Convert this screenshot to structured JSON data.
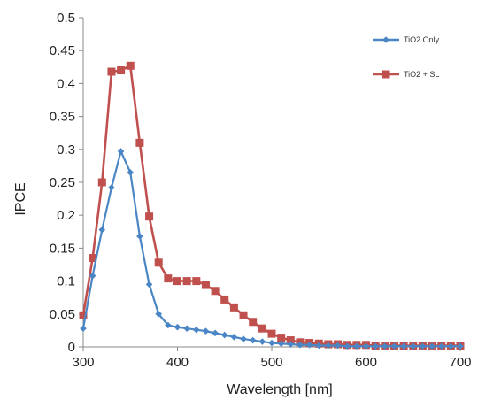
{
  "chart_data": {
    "type": "line",
    "xlabel": "Wavelength [nm]",
    "ylabel": "IPCE",
    "xlim": [
      300,
      700
    ],
    "ylim": [
      0,
      0.5
    ],
    "x_ticks": [
      300,
      400,
      500,
      600,
      700
    ],
    "y_ticks": [
      "0",
      "0.05",
      "0.1",
      "0.15",
      "0.2",
      "0.25",
      "0.3",
      "0.35",
      "0.4",
      "0.45",
      "0.5"
    ],
    "grid": false,
    "legend_position": "top-right",
    "series": [
      {
        "name": "TiO2 Only",
        "color": "#4a86c5",
        "marker": "diamond",
        "x": [
          300,
          310,
          320,
          330,
          340,
          350,
          360,
          370,
          380,
          390,
          400,
          410,
          420,
          430,
          440,
          450,
          460,
          470,
          480,
          490,
          500,
          510,
          520,
          530,
          540,
          550,
          560,
          570,
          580,
          590,
          600,
          610,
          620,
          630,
          640,
          650,
          660,
          670,
          680,
          690,
          700
        ],
        "values": [
          0.028,
          0.108,
          0.178,
          0.242,
          0.297,
          0.265,
          0.168,
          0.095,
          0.05,
          0.033,
          0.03,
          0.028,
          0.026,
          0.024,
          0.021,
          0.018,
          0.015,
          0.012,
          0.01,
          0.008,
          0.006,
          0.005,
          0.004,
          0.003,
          0.003,
          0.002,
          0.002,
          0.002,
          0.001,
          0.001,
          0.001,
          0.001,
          0.001,
          0.001,
          0.001,
          0.001,
          0.001,
          0.001,
          0.001,
          0.001,
          0.001
        ]
      },
      {
        "name": "TiO2 + SL",
        "color": "#c0504d",
        "marker": "square",
        "x": [
          300,
          310,
          320,
          330,
          340,
          350,
          360,
          370,
          380,
          390,
          400,
          410,
          420,
          430,
          440,
          450,
          460,
          470,
          480,
          490,
          500,
          510,
          520,
          530,
          540,
          550,
          560,
          570,
          580,
          590,
          600,
          610,
          620,
          630,
          640,
          650,
          660,
          670,
          680,
          690,
          700
        ],
        "values": [
          0.048,
          0.135,
          0.25,
          0.418,
          0.42,
          0.427,
          0.31,
          0.198,
          0.128,
          0.104,
          0.1,
          0.1,
          0.1,
          0.094,
          0.085,
          0.072,
          0.06,
          0.048,
          0.038,
          0.028,
          0.02,
          0.014,
          0.01,
          0.007,
          0.006,
          0.005,
          0.004,
          0.004,
          0.003,
          0.003,
          0.003,
          0.002,
          0.002,
          0.002,
          0.002,
          0.002,
          0.002,
          0.002,
          0.002,
          0.002,
          0.002
        ]
      }
    ]
  }
}
